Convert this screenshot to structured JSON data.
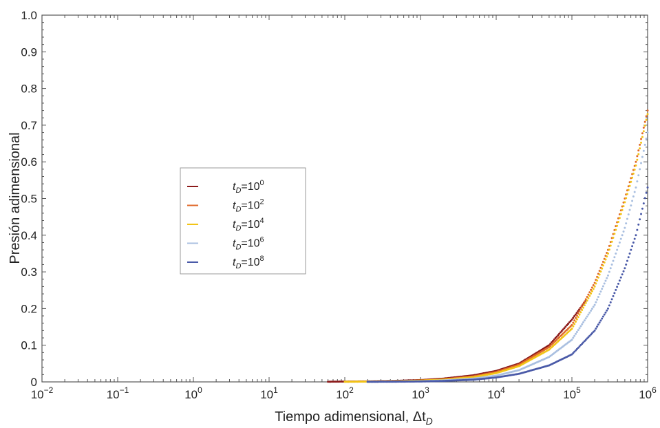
{
  "chart_data": {
    "type": "scatter",
    "xlabel": "Tiempo adimensional, Δt",
    "xlabel_sub": "D",
    "ylabel": "Presión adimensional",
    "x_scale": "log",
    "xlim": [
      0.01,
      1000000
    ],
    "ylim": [
      0,
      1.0
    ],
    "x_ticks": [
      {
        "base": "10",
        "exp": "−2",
        "value": 0.01
      },
      {
        "base": "10",
        "exp": "−1",
        "value": 0.1
      },
      {
        "base": "10",
        "exp": "0",
        "value": 1
      },
      {
        "base": "10",
        "exp": "1",
        "value": 10
      },
      {
        "base": "10",
        "exp": "2",
        "value": 100
      },
      {
        "base": "10",
        "exp": "3",
        "value": 1000
      },
      {
        "base": "10",
        "exp": "4",
        "value": 10000
      },
      {
        "base": "10",
        "exp": "5",
        "value": 100000
      },
      {
        "base": "10",
        "exp": "6",
        "value": 1000000
      }
    ],
    "y_ticks": [
      "0",
      "0.1",
      "0.2",
      "0.3",
      "0.4",
      "0.5",
      "0.6",
      "0.7",
      "0.8",
      "0.9",
      "1.0"
    ],
    "grid": false,
    "legend_position": "center-left",
    "series": [
      {
        "name": "t_D=10^0",
        "label_main": "t",
        "label_sub": "D",
        "label_eq": "=10",
        "label_sup": "0",
        "color": "#8b1a1a",
        "x": [
          60,
          100,
          200,
          500,
          1000,
          2000,
          5000,
          10000,
          20000,
          50000,
          100000,
          150000
        ],
        "y": [
          0.0005,
          0.001,
          0.0015,
          0.003,
          0.005,
          0.009,
          0.018,
          0.03,
          0.05,
          0.1,
          0.17,
          0.22
        ]
      },
      {
        "name": "t_D=10^2",
        "label_main": "t",
        "label_sub": "D",
        "label_eq": "=10",
        "label_sup": "2",
        "color": "#e0692a",
        "x": [
          100,
          200,
          500,
          1000,
          2000,
          5000,
          10000,
          20000,
          50000,
          100000,
          200000,
          300000,
          500000,
          700000,
          1000000
        ],
        "y": [
          0.0005,
          0.001,
          0.002,
          0.004,
          0.007,
          0.015,
          0.027,
          0.047,
          0.095,
          0.155,
          0.27,
          0.36,
          0.5,
          0.6,
          0.74
        ]
      },
      {
        "name": "t_D=10^4",
        "label_main": "t",
        "label_sub": "D",
        "label_eq": "=10",
        "label_sup": "4",
        "color": "#f2c416",
        "x": [
          100,
          200,
          500,
          1000,
          2000,
          5000,
          10000,
          20000,
          50000,
          100000,
          200000,
          300000,
          500000,
          700000,
          1000000
        ],
        "y": [
          0.0004,
          0.0008,
          0.0018,
          0.0035,
          0.006,
          0.013,
          0.024,
          0.043,
          0.088,
          0.145,
          0.26,
          0.35,
          0.49,
          0.59,
          0.73
        ]
      },
      {
        "name": "t_D=10^6",
        "label_main": "t",
        "label_sub": "D",
        "label_eq": "=10",
        "label_sup": "6",
        "color": "#a9bfe0",
        "x": [
          200,
          500,
          1000,
          2000,
          5000,
          10000,
          20000,
          50000,
          100000,
          200000,
          300000,
          500000,
          700000,
          1000000
        ],
        "y": [
          0.0003,
          0.001,
          0.002,
          0.004,
          0.009,
          0.017,
          0.032,
          0.068,
          0.115,
          0.21,
          0.29,
          0.42,
          0.53,
          0.68
        ]
      },
      {
        "name": "t_D=10^8",
        "label_main": "t",
        "label_sub": "D",
        "label_eq": "=10",
        "label_sup": "8",
        "color": "#4a5aa8",
        "x": [
          200,
          500,
          1000,
          2000,
          5000,
          10000,
          20000,
          50000,
          100000,
          200000,
          300000,
          500000,
          700000,
          1000000
        ],
        "y": [
          0.0002,
          0.0006,
          0.0012,
          0.0025,
          0.006,
          0.012,
          0.022,
          0.045,
          0.075,
          0.14,
          0.2,
          0.31,
          0.4,
          0.53
        ]
      }
    ]
  }
}
